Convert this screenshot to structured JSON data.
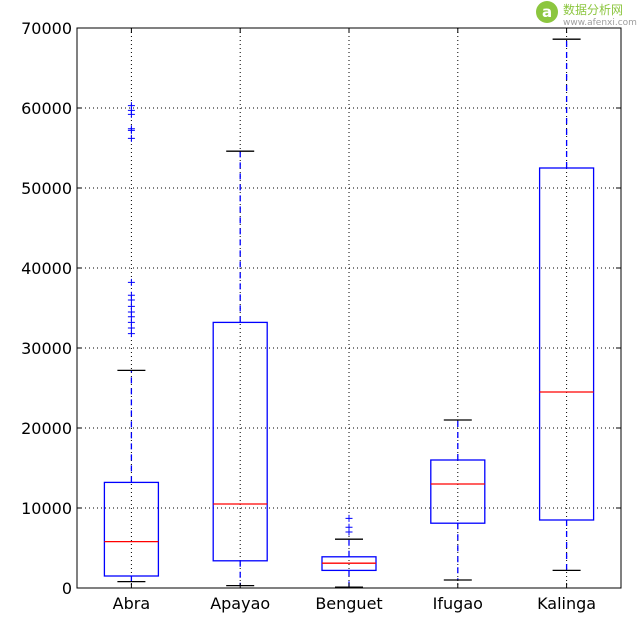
{
  "chart_data": {
    "type": "boxplot",
    "title": "",
    "xlabel": "",
    "ylabel": "",
    "ylim": [
      0,
      70000
    ],
    "yticks": [
      0,
      10000,
      20000,
      30000,
      40000,
      50000,
      60000,
      70000
    ],
    "ytick_labels": [
      "0",
      "10000",
      "20000",
      "30000",
      "40000",
      "50000",
      "60000",
      "70000"
    ],
    "grid": true,
    "categories": [
      "Abra",
      "Apayao",
      "Benguet",
      "Ifugao",
      "Kalinga"
    ],
    "boxes": [
      {
        "name": "Abra",
        "whisker_low": 800,
        "q1": 1500,
        "median": 5800,
        "q3": 13200,
        "whisker_high": 27200,
        "fliers": [
          31800,
          32500,
          33200,
          33900,
          34500,
          35200,
          36000,
          36600,
          38200,
          56200,
          57200,
          57400,
          59200,
          59700,
          60300
        ]
      },
      {
        "name": "Apayao",
        "whisker_low": 300,
        "q1": 3400,
        "median": 10500,
        "q3": 33200,
        "whisker_high": 54600,
        "fliers": []
      },
      {
        "name": "Benguet",
        "whisker_low": 100,
        "q1": 2200,
        "median": 3100,
        "q3": 3900,
        "whisker_high": 6100,
        "fliers": [
          7000,
          7600,
          8700
        ]
      },
      {
        "name": "Ifugao",
        "whisker_low": 1000,
        "q1": 8100,
        "median": 13000,
        "q3": 16000,
        "whisker_high": 21000,
        "fliers": []
      },
      {
        "name": "Kalinga",
        "whisker_low": 2200,
        "q1": 8500,
        "median": 24500,
        "q3": 52500,
        "whisker_high": 68600,
        "fliers": []
      }
    ],
    "colors": {
      "box": "#0000ff",
      "median": "#ff0000",
      "whisker": "#0000ff",
      "cap": "#000000",
      "grid": "#000000"
    }
  },
  "watermark": {
    "logo_letter": "a",
    "text_zh": "数据分析网",
    "url": "www.afenxi.com",
    "color": "#8cc63f"
  }
}
